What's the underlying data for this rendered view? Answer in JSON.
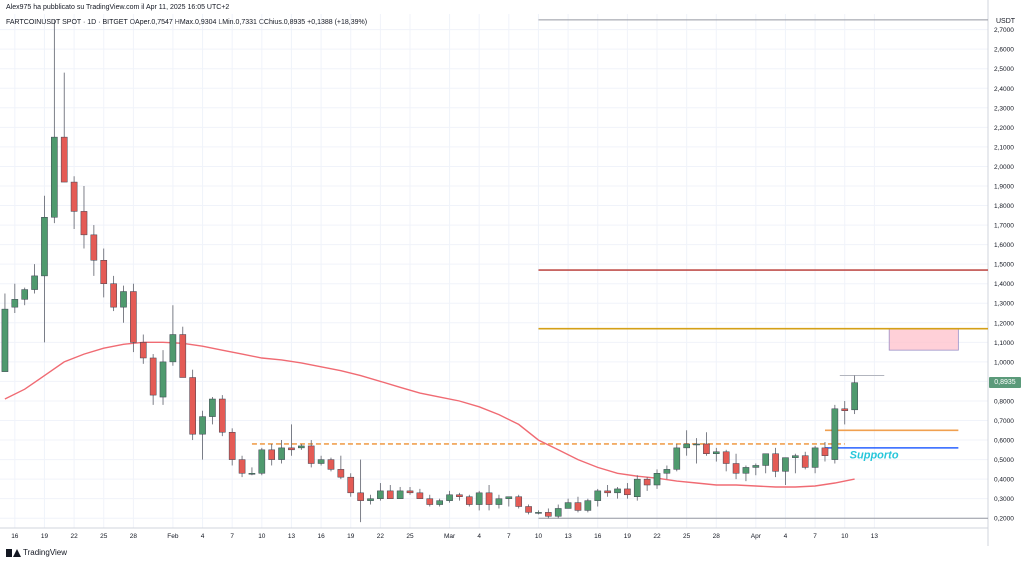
{
  "header": {
    "line1": "Alex975 ha pubblicato su TradingView.com il Apr 11, 2025 16:05 UTC+2",
    "symbol": "FARTCOINUSDT SPOT · 1D · BITGET",
    "open_label": "O",
    "open_value": "Aper.0,7547",
    "high_label": "H",
    "high_value": "Max.0,9304",
    "low_label": "L",
    "low_value": "Min.0,7331",
    "close_label": "C",
    "close_value": "Chius.0,8935",
    "change": "+0,1388 (+18,39%)"
  },
  "brand": "TradingView",
  "colors": {
    "up": "#4f9a6e",
    "down": "#e45b55",
    "ma": "#f06b73",
    "support_blue": "#2962ff",
    "support_label": "#26c6da",
    "orange": "#f0a050",
    "red_line": "#c0504d",
    "gold_line": "#d4a017",
    "zone_fill": "#ffc0cb"
  },
  "chart_data": {
    "type": "candlestick",
    "currency": "USDT",
    "yticks": [
      "0,2000",
      "0,3000",
      "0,4000",
      "0,5000",
      "0,6000",
      "0,7000",
      "0,8000",
      "0,9000",
      "1,0000",
      "1,1000",
      "1,2000",
      "1,3000",
      "1,4000",
      "1,5000",
      "1,6000",
      "1,7000",
      "1,8000",
      "1,9000",
      "2,0000",
      "2,1000",
      "2,2000",
      "2,3000",
      "2,4000",
      "2,5000",
      "2,6000",
      "2,7000"
    ],
    "ylim": [
      0.15,
      2.78
    ],
    "xlim": [
      14.5,
      114.5
    ],
    "xticks": [
      {
        "label": "16",
        "d": 16
      },
      {
        "label": "19",
        "d": 19
      },
      {
        "label": "22",
        "d": 22
      },
      {
        "label": "25",
        "d": 25
      },
      {
        "label": "28",
        "d": 28
      },
      {
        "label": "Feb",
        "d": 32
      },
      {
        "label": "4",
        "d": 35
      },
      {
        "label": "7",
        "d": 38
      },
      {
        "label": "10",
        "d": 41
      },
      {
        "label": "13",
        "d": 44
      },
      {
        "label": "16",
        "d": 47
      },
      {
        "label": "19",
        "d": 50
      },
      {
        "label": "22",
        "d": 53
      },
      {
        "label": "25",
        "d": 56
      },
      {
        "label": "Mar",
        "d": 60
      },
      {
        "label": "4",
        "d": 63
      },
      {
        "label": "7",
        "d": 66
      },
      {
        "label": "10",
        "d": 69
      },
      {
        "label": "13",
        "d": 72
      },
      {
        "label": "16",
        "d": 75
      },
      {
        "label": "19",
        "d": 78
      },
      {
        "label": "22",
        "d": 81
      },
      {
        "label": "25",
        "d": 84
      },
      {
        "label": "28",
        "d": 87
      },
      {
        "label": "Apr",
        "d": 91
      },
      {
        "label": "4",
        "d": 94
      },
      {
        "label": "7",
        "d": 97
      },
      {
        "label": "10",
        "d": 100
      },
      {
        "label": "13",
        "d": 103
      }
    ],
    "candles": [
      [
        15,
        0.95,
        1.35,
        0.96,
        1.27
      ],
      [
        16,
        1.28,
        1.4,
        1.25,
        1.32
      ],
      [
        17,
        1.32,
        1.38,
        1.29,
        1.37
      ],
      [
        18,
        1.37,
        1.5,
        1.35,
        1.44
      ],
      [
        19,
        1.44,
        1.85,
        1.1,
        1.74
      ],
      [
        20,
        1.74,
        2.75,
        1.71,
        2.15
      ],
      [
        21,
        2.15,
        2.48,
        1.92,
        1.92
      ],
      [
        22,
        1.92,
        1.95,
        1.68,
        1.77
      ],
      [
        23,
        1.77,
        1.9,
        1.58,
        1.65
      ],
      [
        24,
        1.65,
        1.7,
        1.44,
        1.52
      ],
      [
        25,
        1.52,
        1.58,
        1.33,
        1.4
      ],
      [
        26,
        1.4,
        1.44,
        1.26,
        1.28
      ],
      [
        27,
        1.28,
        1.39,
        1.2,
        1.36
      ],
      [
        28,
        1.36,
        1.4,
        1.05,
        1.1
      ],
      [
        29,
        1.1,
        1.14,
        0.99,
        1.02
      ],
      [
        30,
        1.02,
        1.04,
        0.78,
        0.83
      ],
      [
        31,
        0.82,
        1.06,
        0.78,
        1.0
      ],
      [
        32,
        1.0,
        1.29,
        0.98,
        1.14
      ],
      [
        33,
        1.14,
        1.18,
        0.93,
        0.92
      ],
      [
        34,
        0.92,
        0.96,
        0.6,
        0.63
      ],
      [
        35,
        0.63,
        0.75,
        0.5,
        0.72
      ],
      [
        36,
        0.72,
        0.82,
        0.68,
        0.81
      ],
      [
        37,
        0.81,
        0.83,
        0.62,
        0.64
      ],
      [
        38,
        0.64,
        0.66,
        0.47,
        0.5
      ],
      [
        39,
        0.5,
        0.52,
        0.41,
        0.43
      ],
      [
        40,
        0.43,
        0.46,
        0.42,
        0.43
      ],
      [
        41,
        0.43,
        0.56,
        0.42,
        0.55
      ],
      [
        42,
        0.55,
        0.58,
        0.47,
        0.5
      ],
      [
        43,
        0.5,
        0.6,
        0.48,
        0.56
      ],
      [
        44,
        0.56,
        0.68,
        0.52,
        0.55
      ],
      [
        45,
        0.56,
        0.58,
        0.55,
        0.57
      ],
      [
        46,
        0.57,
        0.6,
        0.46,
        0.48
      ],
      [
        47,
        0.48,
        0.52,
        0.47,
        0.5
      ],
      [
        48,
        0.5,
        0.51,
        0.44,
        0.45
      ],
      [
        49,
        0.45,
        0.52,
        0.4,
        0.41
      ],
      [
        50,
        0.41,
        0.43,
        0.31,
        0.33
      ],
      [
        51,
        0.33,
        0.5,
        0.18,
        0.29
      ],
      [
        52,
        0.29,
        0.32,
        0.27,
        0.3
      ],
      [
        53,
        0.3,
        0.38,
        0.29,
        0.34
      ],
      [
        54,
        0.34,
        0.37,
        0.3,
        0.3
      ],
      [
        55,
        0.3,
        0.36,
        0.3,
        0.34
      ],
      [
        56,
        0.34,
        0.36,
        0.32,
        0.33
      ],
      [
        57,
        0.33,
        0.35,
        0.3,
        0.3
      ],
      [
        58,
        0.3,
        0.32,
        0.26,
        0.27
      ],
      [
        59,
        0.27,
        0.3,
        0.26,
        0.29
      ],
      [
        60,
        0.29,
        0.34,
        0.28,
        0.32
      ],
      [
        61,
        0.32,
        0.33,
        0.29,
        0.31
      ],
      [
        62,
        0.31,
        0.32,
        0.26,
        0.27
      ],
      [
        63,
        0.27,
        0.34,
        0.24,
        0.33
      ],
      [
        64,
        0.33,
        0.37,
        0.24,
        0.27
      ],
      [
        65,
        0.27,
        0.32,
        0.25,
        0.3
      ],
      [
        66,
        0.3,
        0.31,
        0.26,
        0.31
      ],
      [
        67,
        0.31,
        0.32,
        0.25,
        0.26
      ],
      [
        68,
        0.26,
        0.27,
        0.22,
        0.23
      ],
      [
        69,
        0.23,
        0.24,
        0.22,
        0.23
      ],
      [
        70,
        0.23,
        0.25,
        0.2,
        0.21
      ],
      [
        71,
        0.21,
        0.27,
        0.2,
        0.25
      ],
      [
        72,
        0.25,
        0.3,
        0.25,
        0.28
      ],
      [
        73,
        0.28,
        0.31,
        0.23,
        0.24
      ],
      [
        74,
        0.24,
        0.3,
        0.23,
        0.29
      ],
      [
        75,
        0.29,
        0.35,
        0.26,
        0.34
      ],
      [
        76,
        0.34,
        0.37,
        0.31,
        0.33
      ],
      [
        77,
        0.33,
        0.36,
        0.3,
        0.35
      ],
      [
        78,
        0.35,
        0.38,
        0.3,
        0.32
      ],
      [
        79,
        0.31,
        0.42,
        0.29,
        0.4
      ],
      [
        80,
        0.4,
        0.41,
        0.34,
        0.37
      ],
      [
        81,
        0.37,
        0.45,
        0.35,
        0.43
      ],
      [
        82,
        0.43,
        0.47,
        0.4,
        0.45
      ],
      [
        83,
        0.45,
        0.58,
        0.44,
        0.56
      ],
      [
        84,
        0.56,
        0.65,
        0.52,
        0.58
      ],
      [
        85,
        0.58,
        0.61,
        0.48,
        0.58
      ],
      [
        86,
        0.58,
        0.64,
        0.52,
        0.53
      ],
      [
        87,
        0.53,
        0.56,
        0.49,
        0.54
      ],
      [
        88,
        0.54,
        0.55,
        0.44,
        0.48
      ],
      [
        89,
        0.48,
        0.53,
        0.4,
        0.43
      ],
      [
        90,
        0.43,
        0.47,
        0.39,
        0.46
      ],
      [
        91,
        0.46,
        0.48,
        0.42,
        0.47
      ],
      [
        92,
        0.47,
        0.52,
        0.43,
        0.53
      ],
      [
        93,
        0.53,
        0.56,
        0.41,
        0.44
      ],
      [
        94,
        0.44,
        0.51,
        0.37,
        0.51
      ],
      [
        95,
        0.51,
        0.53,
        0.43,
        0.52
      ],
      [
        96,
        0.52,
        0.54,
        0.45,
        0.46
      ],
      [
        97,
        0.46,
        0.57,
        0.43,
        0.56
      ],
      [
        98,
        0.56,
        0.59,
        0.49,
        0.52
      ],
      [
        99,
        0.5,
        0.78,
        0.48,
        0.76
      ],
      [
        100,
        0.76,
        0.8,
        0.68,
        0.75
      ],
      [
        101,
        0.7547,
        0.9304,
        0.7331,
        0.8935
      ]
    ],
    "moving_average": [
      [
        15,
        0.81
      ],
      [
        17,
        0.86
      ],
      [
        19,
        0.93
      ],
      [
        21,
        1.0
      ],
      [
        23,
        1.04
      ],
      [
        25,
        1.07
      ],
      [
        27,
        1.09
      ],
      [
        29,
        1.1
      ],
      [
        31,
        1.1
      ],
      [
        33,
        1.095
      ],
      [
        35,
        1.08
      ],
      [
        37,
        1.06
      ],
      [
        39,
        1.04
      ],
      [
        41,
        1.02
      ],
      [
        43,
        1.01
      ],
      [
        45,
        0.995
      ],
      [
        47,
        0.975
      ],
      [
        49,
        0.955
      ],
      [
        51,
        0.93
      ],
      [
        53,
        0.9
      ],
      [
        55,
        0.87
      ],
      [
        57,
        0.84
      ],
      [
        59,
        0.82
      ],
      [
        61,
        0.8
      ],
      [
        63,
        0.77
      ],
      [
        65,
        0.73
      ],
      [
        67,
        0.68
      ],
      [
        69,
        0.6
      ],
      [
        71,
        0.55
      ],
      [
        73,
        0.5
      ],
      [
        75,
        0.46
      ],
      [
        77,
        0.43
      ],
      [
        79,
        0.415
      ],
      [
        81,
        0.405
      ],
      [
        83,
        0.39
      ],
      [
        85,
        0.38
      ],
      [
        87,
        0.37
      ],
      [
        89,
        0.37
      ],
      [
        91,
        0.365
      ],
      [
        93,
        0.36
      ],
      [
        95,
        0.36
      ],
      [
        97,
        0.365
      ],
      [
        99,
        0.38
      ],
      [
        101,
        0.4
      ]
    ],
    "levels": [
      {
        "name": "resistance-red",
        "y": 1.47,
        "x1": 69,
        "x2": 114.5,
        "color": "#c0504d",
        "style": "solid"
      },
      {
        "name": "resistance-gold",
        "y": 1.17,
        "x1": 69,
        "x2": 114.5,
        "color": "#d4a017",
        "style": "solid"
      },
      {
        "name": "top-gray",
        "y": 2.75,
        "x1": 69,
        "x2": 114.5,
        "color": "#9598a1",
        "style": "solid"
      },
      {
        "name": "bottom-gray",
        "y": 0.2,
        "x1": 69,
        "x2": 114.5,
        "color": "#9598a1",
        "style": "solid"
      },
      {
        "name": "resistance-orange",
        "y": 0.65,
        "x1": 98,
        "x2": 111.5,
        "color": "#f0a050",
        "style": "solid"
      },
      {
        "name": "support-dashed",
        "y": 0.58,
        "x1": 40,
        "x2": 100,
        "color": "#f0a050",
        "style": "dashed"
      },
      {
        "name": "support-blue",
        "y": 0.56,
        "x1": 98,
        "x2": 111.5,
        "color": "#2962ff",
        "style": "solid"
      },
      {
        "name": "high-marker",
        "y": 0.93,
        "x1": 99.5,
        "x2": 104,
        "color": "#b2b5be",
        "style": "solid"
      }
    ],
    "zone": {
      "y1": 1.06,
      "y2": 1.17,
      "x1": 104.5,
      "x2": 111.5
    },
    "annotation": {
      "text": "Supporto",
      "x": 100.5,
      "y": 0.505
    },
    "last_price": {
      "value": 0.8935,
      "label": "0,8935"
    }
  }
}
